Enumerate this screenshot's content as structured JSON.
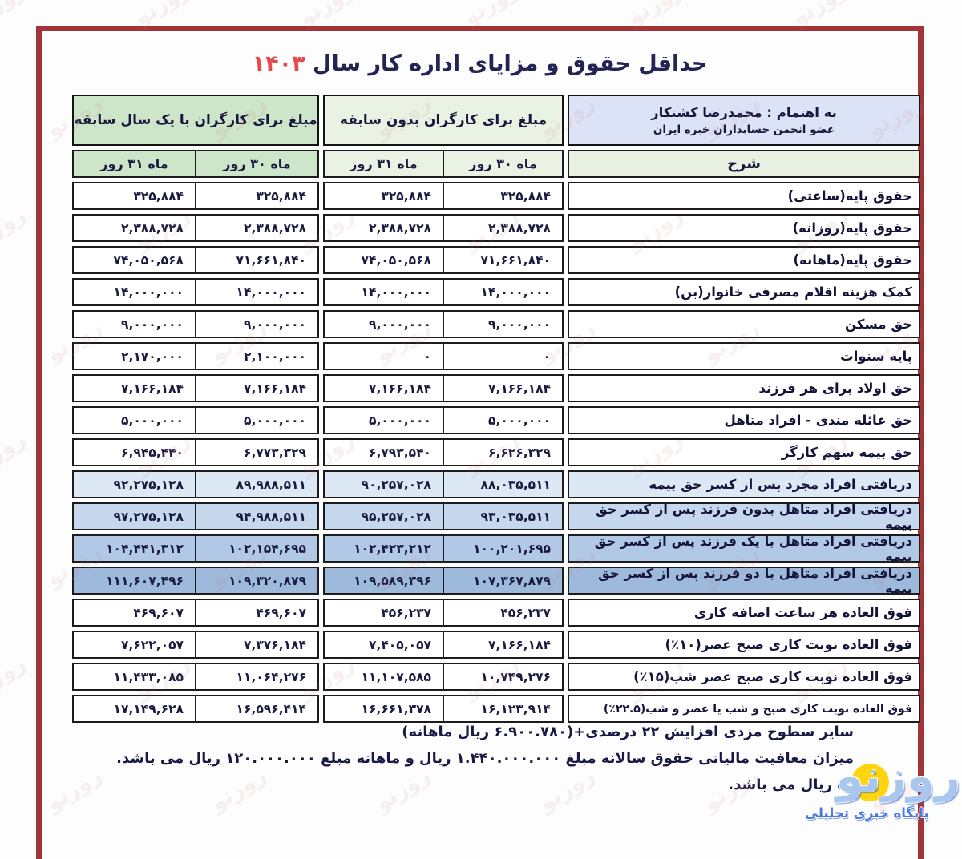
{
  "title": {
    "text": "حداقل حقوق و مزایای اداره کار سال",
    "year": "۱۴۰۳"
  },
  "header": {
    "prepared_by_line1": "به اهتمام : محمدرضا کشتکار",
    "prepared_by_line2": "عضو انجمن حسابداران خبره ایران",
    "description_label": "شرح",
    "group_one_year": "مبلغ برای کارگران با یک سال سابقه",
    "group_no_experience": "مبلغ برای کارگران بدون سابقه",
    "month_30": "ماه ۳۰ روز",
    "month_31": "ماه ۳۱ روز"
  },
  "table": {
    "rows": [
      {
        "label": "حقوق پایه(ساعتی)",
        "exp31": "۳۲۵,۸۸۴",
        "exp30": "۳۲۵,۸۸۴",
        "no31": "۳۲۵,۸۸۴",
        "no30": "۳۲۵,۸۸۴",
        "hl": 0
      },
      {
        "label": "حقوق پایه(روزانه)",
        "exp31": "۲,۳۸۸,۷۲۸",
        "exp30": "۲,۳۸۸,۷۲۸",
        "no31": "۲,۳۸۸,۷۲۸",
        "no30": "۲,۳۸۸,۷۲۸",
        "hl": 0
      },
      {
        "label": "حقوق پایه(ماهانه)",
        "exp31": "۷۴,۰۵۰,۵۶۸",
        "exp30": "۷۱,۶۶۱,۸۴۰",
        "no31": "۷۴,۰۵۰,۵۶۸",
        "no30": "۷۱,۶۶۱,۸۴۰",
        "hl": 0
      },
      {
        "label": "کمک هزینه اقلام مصرفی خانوار(بن)",
        "exp31": "۱۴,۰۰۰,۰۰۰",
        "exp30": "۱۴,۰۰۰,۰۰۰",
        "no31": "۱۴,۰۰۰,۰۰۰",
        "no30": "۱۴,۰۰۰,۰۰۰",
        "hl": 0
      },
      {
        "label": "حق مسکن",
        "exp31": "۹,۰۰۰,۰۰۰",
        "exp30": "۹,۰۰۰,۰۰۰",
        "no31": "۹,۰۰۰,۰۰۰",
        "no30": "۹,۰۰۰,۰۰۰",
        "hl": 0
      },
      {
        "label": "پایه سنوات",
        "exp31": "۲,۱۷۰,۰۰۰",
        "exp30": "۲,۱۰۰,۰۰۰",
        "no31": "۰",
        "no30": "۰",
        "hl": 0
      },
      {
        "label": "حق اولاد برای هر فرزند",
        "exp31": "۷,۱۶۶,۱۸۴",
        "exp30": "۷,۱۶۶,۱۸۴",
        "no31": "۷,۱۶۶,۱۸۴",
        "no30": "۷,۱۶۶,۱۸۴",
        "hl": 0
      },
      {
        "label": "حق عائله مندی - افراد متاهل",
        "exp31": "۵,۰۰۰,۰۰۰",
        "exp30": "۵,۰۰۰,۰۰۰",
        "no31": "۵,۰۰۰,۰۰۰",
        "no30": "۵,۰۰۰,۰۰۰",
        "hl": 0
      },
      {
        "label": "حق بیمه سهم کارگر",
        "exp31": "۶,۹۴۵,۴۴۰",
        "exp30": "۶,۷۷۳,۳۲۹",
        "no31": "۶,۷۹۳,۵۴۰",
        "no30": "۶,۶۲۶,۳۲۹",
        "hl": 0
      },
      {
        "label": "دریافتی افراد مجرد پس از کسر حق بیمه",
        "exp31": "۹۲,۲۷۵,۱۲۸",
        "exp30": "۸۹,۹۸۸,۵۱۱",
        "no31": "۹۰,۲۵۷,۰۲۸",
        "no30": "۸۸,۰۳۵,۵۱۱",
        "hl": 1
      },
      {
        "label": "دریافتی افراد متاهل بدون فرزند پس از کسر حق بیمه",
        "exp31": "۹۷,۲۷۵,۱۲۸",
        "exp30": "۹۴,۹۸۸,۵۱۱",
        "no31": "۹۵,۲۵۷,۰۲۸",
        "no30": "۹۳,۰۳۵,۵۱۱",
        "hl": 2
      },
      {
        "label": "دریافتی افراد متاهل با یک فرزند پس از کسر حق بیمه",
        "exp31": "۱۰۴,۴۴۱,۳۱۲",
        "exp30": "۱۰۲,۱۵۴,۶۹۵",
        "no31": "۱۰۲,۴۲۳,۲۱۲",
        "no30": "۱۰۰,۲۰۱,۶۹۵",
        "hl": 3
      },
      {
        "label": "دریافتی افراد متاهل با دو فرزند پس از کسر حق بیمه",
        "exp31": "۱۱۱,۶۰۷,۴۹۶",
        "exp30": "۱۰۹,۳۲۰,۸۷۹",
        "no31": "۱۰۹,۵۸۹,۳۹۶",
        "no30": "۱۰۷,۳۶۷,۸۷۹",
        "hl": 4
      },
      {
        "label": "فوق العاده هر ساعت اضافه کاری",
        "exp31": "۴۶۹,۶۰۷",
        "exp30": "۴۶۹,۶۰۷",
        "no31": "۴۵۶,۲۳۷",
        "no30": "۴۵۶,۲۳۷",
        "hl": 0
      },
      {
        "label": "فوق العاده نوبت کاری صبح عصر(۱۰٪)",
        "exp31": "۷,۶۲۲,۰۵۷",
        "exp30": "۷,۳۷۶,۱۸۴",
        "no31": "۷,۴۰۵,۰۵۷",
        "no30": "۷,۱۶۶,۱۸۴",
        "hl": 0
      },
      {
        "label": "فوق العاده نوبت کاری صبح عصر شب(۱۵٪)",
        "exp31": "۱۱,۴۳۳,۰۸۵",
        "exp30": "۱۱,۰۶۴,۲۷۶",
        "no31": "۱۱,۱۰۷,۵۸۵",
        "no30": "۱۰,۷۴۹,۲۷۶",
        "hl": 0
      },
      {
        "label": "فوق العاده نوبت کاری صبح و شب یا عصر و شب(۲۲.۵٪)",
        "exp31": "۱۷,۱۴۹,۶۲۸",
        "exp30": "۱۶,۵۹۶,۴۱۴",
        "no31": "۱۶,۶۶۱,۳۷۸",
        "no30": "۱۶,۱۲۳,۹۱۴",
        "hl": 0,
        "small": true
      }
    ]
  },
  "footer": {
    "line1": "سایر سطوح مزدی افزایش ۲۲ درصدی+(۶.۹۰۰.۷۸۰ ریال ماهانه)",
    "line2": "میزان معافیت مالیاتی حقوق سالانه مبلغ ۱.۴۴۰.۰۰۰.۰۰۰ ریال و ماهانه مبلغ ۱۲۰.۰۰۰.۰۰۰ ریال می باشد.",
    "line3_visible": "ه ریال می باشد."
  },
  "logo": {
    "name": "روزنو",
    "tagline": "پایگاه خبری تحلیلی"
  },
  "watermark": {
    "text": "روزنو"
  },
  "colors": {
    "frame_red": "#a23538",
    "title_text": "#232355",
    "title_year_red": "#e4494d",
    "border_black": "#1c1c1c",
    "group_one_year_green": "#cde5c8",
    "group_no_exp_green": "#eaf2e4",
    "description_header_green": "#e8f1e2",
    "prepared_by_blue": "#dde3f6",
    "highlight_rows": [
      "#dce8f4",
      "#c6d8ee",
      "#b1c8e6",
      "#9db9dc"
    ],
    "logo_yellow": "#ffd60d",
    "logo_blue": "#4b7be2"
  }
}
